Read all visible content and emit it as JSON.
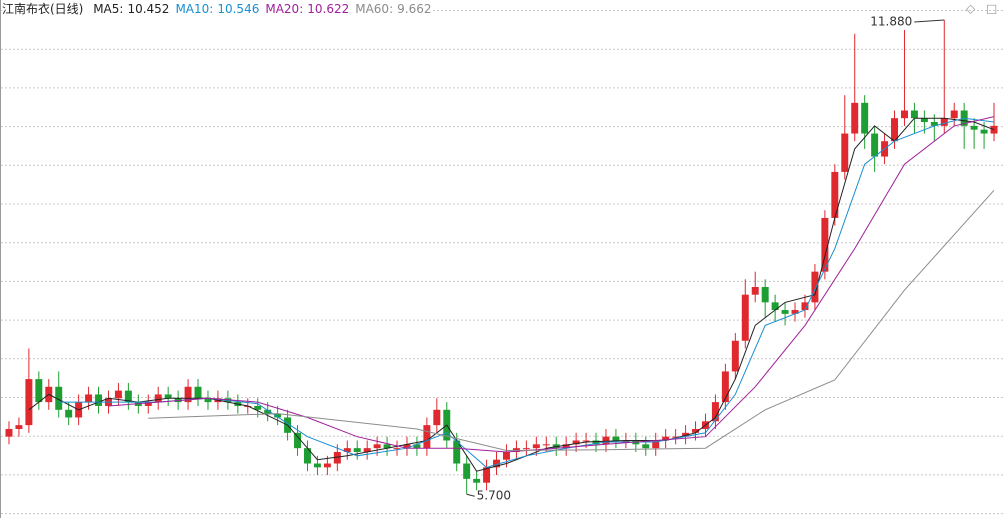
{
  "chart_data": {
    "type": "candlestick",
    "title": "江南布衣(日线)",
    "ylim": [
      5.39,
      12.14
    ],
    "grid": true,
    "up_color": "#e0282f",
    "down_color": "#1e9e32",
    "open": [
      6.45,
      6.55,
      6.6,
      7.2,
      6.9,
      7.1,
      6.8,
      6.7,
      6.9,
      7.0,
      6.85,
      6.95,
      7.05,
      6.9,
      6.85,
      6.9,
      7.0,
      6.95,
      6.9,
      7.1,
      6.95,
      6.9,
      6.95,
      6.9,
      6.85,
      6.85,
      6.8,
      6.75,
      6.7,
      6.5,
      6.3,
      6.1,
      6.05,
      6.1,
      6.25,
      6.3,
      6.25,
      6.3,
      6.35,
      6.3,
      6.3,
      6.35,
      6.3,
      6.6,
      6.8,
      6.4,
      6.1,
      5.9,
      5.85,
      6.05,
      6.15,
      6.25,
      6.3,
      6.3,
      6.35,
      6.35,
      6.3,
      6.35,
      6.4,
      6.4,
      6.35,
      6.45,
      6.4,
      6.4,
      6.35,
      6.3,
      6.4,
      6.45,
      6.45,
      6.5,
      6.55,
      6.65,
      6.9,
      7.3,
      7.7,
      8.3,
      8.4,
      8.2,
      8.1,
      8.05,
      8.1,
      8.2,
      8.6,
      9.3,
      9.9,
      10.4,
      10.8,
      10.4,
      10.1,
      10.3,
      10.6,
      10.7,
      10.6,
      10.55,
      10.5,
      10.6,
      10.7,
      10.5,
      10.45,
      10.4
    ],
    "high": [
      6.65,
      6.7,
      7.6,
      7.3,
      7.2,
      7.3,
      6.9,
      7.0,
      7.1,
      7.1,
      7.05,
      7.15,
      7.15,
      7.0,
      7.0,
      7.1,
      7.1,
      7.05,
      7.2,
      7.2,
      7.05,
      7.05,
      7.05,
      7.0,
      6.95,
      6.95,
      6.9,
      6.85,
      6.8,
      6.6,
      6.4,
      6.2,
      6.2,
      6.35,
      6.4,
      6.4,
      6.4,
      6.45,
      6.45,
      6.4,
      6.45,
      6.45,
      6.7,
      6.95,
      6.9,
      6.5,
      6.2,
      6.0,
      6.15,
      6.25,
      6.35,
      6.4,
      6.4,
      6.45,
      6.45,
      6.45,
      6.45,
      6.5,
      6.5,
      6.5,
      6.55,
      6.55,
      6.5,
      6.5,
      6.45,
      6.5,
      6.55,
      6.55,
      6.6,
      6.65,
      6.75,
      7.0,
      7.4,
      7.8,
      8.5,
      8.6,
      8.5,
      8.3,
      8.2,
      8.2,
      8.3,
      8.7,
      9.4,
      10.0,
      10.9,
      11.7,
      10.9,
      10.5,
      10.4,
      10.7,
      11.75,
      10.8,
      10.7,
      10.65,
      11.88,
      10.8,
      10.8,
      10.6,
      10.55,
      10.8
    ],
    "low": [
      6.35,
      6.45,
      6.5,
      6.8,
      6.8,
      6.7,
      6.6,
      6.6,
      6.8,
      6.75,
      6.75,
      6.85,
      6.8,
      6.75,
      6.75,
      6.8,
      6.85,
      6.8,
      6.8,
      6.85,
      6.8,
      6.8,
      6.8,
      6.75,
      6.75,
      6.7,
      6.65,
      6.6,
      6.4,
      6.2,
      6.0,
      5.95,
      5.95,
      6.0,
      6.15,
      6.15,
      6.15,
      6.2,
      6.2,
      6.2,
      6.2,
      6.2,
      6.2,
      6.5,
      6.3,
      6.0,
      5.7,
      5.75,
      5.75,
      5.95,
      6.05,
      6.15,
      6.2,
      6.2,
      6.25,
      6.2,
      6.2,
      6.25,
      6.3,
      6.25,
      6.25,
      6.3,
      6.3,
      6.25,
      6.2,
      6.2,
      6.3,
      6.35,
      6.35,
      6.4,
      6.45,
      6.55,
      6.8,
      7.2,
      7.6,
      8.2,
      8.0,
      7.95,
      7.9,
      7.95,
      8.0,
      8.1,
      8.5,
      9.2,
      9.8,
      10.3,
      10.2,
      9.9,
      10.0,
      10.2,
      10.5,
      10.4,
      10.4,
      10.3,
      10.4,
      10.5,
      10.2,
      10.2,
      10.2,
      10.3
    ],
    "close": [
      6.55,
      6.6,
      7.2,
      6.9,
      7.1,
      6.8,
      6.7,
      6.9,
      7.0,
      6.85,
      6.95,
      7.05,
      6.9,
      6.85,
      6.9,
      7.0,
      6.95,
      6.9,
      7.1,
      6.95,
      6.9,
      6.95,
      6.9,
      6.85,
      6.85,
      6.8,
      6.75,
      6.7,
      6.5,
      6.3,
      6.1,
      6.05,
      6.1,
      6.25,
      6.3,
      6.25,
      6.3,
      6.35,
      6.3,
      6.3,
      6.35,
      6.3,
      6.6,
      6.8,
      6.4,
      6.1,
      5.9,
      5.85,
      6.05,
      6.15,
      6.25,
      6.3,
      6.3,
      6.35,
      6.35,
      6.3,
      6.35,
      6.4,
      6.4,
      6.35,
      6.45,
      6.4,
      6.4,
      6.35,
      6.3,
      6.4,
      6.45,
      6.45,
      6.5,
      6.55,
      6.65,
      6.9,
      7.3,
      7.7,
      8.3,
      8.4,
      8.2,
      8.1,
      8.05,
      8.1,
      8.2,
      8.6,
      9.3,
      9.9,
      10.4,
      10.8,
      10.4,
      10.1,
      10.3,
      10.6,
      10.7,
      10.6,
      10.55,
      10.5,
      10.6,
      10.7,
      10.5,
      10.45,
      10.4,
      10.5
    ],
    "max_label": {
      "value": 11.88,
      "label": "11.880"
    },
    "min_label": {
      "value": 5.7,
      "label": "5.700"
    },
    "series": [
      {
        "name": "MA5",
        "color": "#222222",
        "latest": 10.452,
        "x": [
          2,
          4,
          7,
          10,
          13,
          16,
          20,
          24,
          28,
          31,
          34,
          38,
          42,
          44,
          47,
          50,
          54,
          58,
          62,
          66,
          69,
          71,
          73,
          75,
          78,
          81,
          83,
          85,
          87,
          89,
          91,
          94,
          97,
          99
        ],
        "values": [
          6.8,
          7.0,
          6.8,
          6.95,
          6.9,
          6.95,
          6.95,
          6.85,
          6.6,
          6.15,
          6.2,
          6.3,
          6.4,
          6.6,
          6.0,
          6.1,
          6.3,
          6.38,
          6.4,
          6.4,
          6.5,
          6.7,
          7.2,
          7.9,
          8.2,
          8.3,
          9.3,
          10.2,
          10.5,
          10.3,
          10.6,
          10.6,
          10.55,
          10.45
        ]
      },
      {
        "name": "MA10",
        "color": "#1a8fd0",
        "latest": 10.546,
        "x": [
          5,
          10,
          15,
          20,
          25,
          30,
          35,
          40,
          44,
          48,
          52,
          56,
          60,
          65,
          70,
          73,
          76,
          80,
          83,
          86,
          89,
          93,
          96,
          99
        ],
        "values": [
          6.9,
          6.9,
          6.9,
          6.95,
          6.88,
          6.45,
          6.2,
          6.3,
          6.5,
          6.05,
          6.2,
          6.3,
          6.38,
          6.38,
          6.5,
          7.0,
          7.9,
          8.1,
          8.9,
          10.0,
          10.3,
          10.5,
          10.6,
          10.55
        ]
      },
      {
        "name": "MA20",
        "color": "#a0209a",
        "latest": 10.622,
        "x": [
          10,
          15,
          20,
          25,
          30,
          35,
          40,
          45,
          50,
          55,
          60,
          65,
          70,
          75,
          80,
          85,
          90,
          95,
          99
        ],
        "values": [
          6.85,
          6.9,
          6.95,
          6.9,
          6.7,
          6.45,
          6.3,
          6.3,
          6.25,
          6.3,
          6.35,
          6.4,
          6.45,
          7.1,
          7.9,
          8.9,
          10.0,
          10.5,
          10.62
        ]
      },
      {
        "name": "MA60",
        "color": "#8c8c8c",
        "latest": 9.662,
        "x": [
          14,
          27,
          41,
          50,
          60,
          70,
          76,
          83,
          90,
          99
        ],
        "values": [
          6.69,
          6.75,
          6.55,
          6.27,
          6.28,
          6.3,
          6.8,
          7.19,
          8.36,
          9.66
        ]
      }
    ]
  }
}
